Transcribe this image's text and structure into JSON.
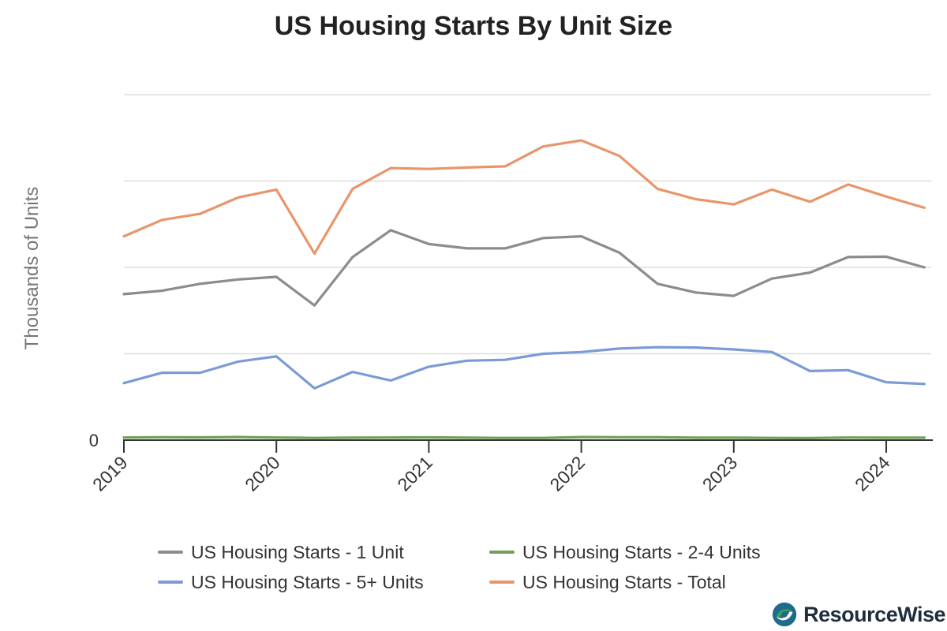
{
  "chart_data": {
    "type": "line",
    "title": "US Housing Starts By Unit Size",
    "ylabel": "Thousands of Units",
    "xlabel": "",
    "ylim": [
      0,
      2000
    ],
    "y_tick_labels": [
      {
        "value": 0,
        "label": "0"
      }
    ],
    "grid": true,
    "x_tick_labels": [
      "2019",
      "2020",
      "2021",
      "2022",
      "2023",
      "2024"
    ],
    "x": [
      "2019-Q1",
      "2019-Q2",
      "2019-Q3",
      "2019-Q4",
      "2020-Q1",
      "2020-Q2",
      "2020-Q3",
      "2020-Q4",
      "2021-Q1",
      "2021-Q2",
      "2021-Q3",
      "2021-Q4",
      "2022-Q1",
      "2022-Q2",
      "2022-Q3",
      "2022-Q4",
      "2023-Q1",
      "2023-Q2",
      "2023-Q3",
      "2023-Q4",
      "2024-Q1",
      "2024-Q2"
    ],
    "legend_position": "bottom",
    "series": [
      {
        "name": "US Housing Starts - 1 Unit",
        "color": "#8c8c8c",
        "values": [
          845,
          865,
          905,
          930,
          945,
          780,
          1060,
          1215,
          1135,
          1110,
          1110,
          1170,
          1180,
          1085,
          905,
          855,
          835,
          935,
          970,
          1060,
          1062,
          1000
        ]
      },
      {
        "name": "US Housing Starts - 2-4 Units",
        "color": "#70a05a",
        "values": [
          15,
          17,
          16,
          18,
          15,
          13,
          14,
          15,
          16,
          14,
          13,
          13,
          18,
          17,
          17,
          14,
          14,
          13,
          12,
          15,
          14,
          14
        ]
      },
      {
        "name": "US Housing Starts - 5+ Units",
        "color": "#7b9ad6",
        "values": [
          330,
          390,
          390,
          455,
          485,
          300,
          395,
          345,
          425,
          460,
          465,
          500,
          510,
          530,
          538,
          536,
          525,
          510,
          400,
          405,
          335,
          325
        ]
      },
      {
        "name": "US Housing Starts - Total",
        "color": "#e8956a",
        "values": [
          1180,
          1275,
          1310,
          1405,
          1450,
          1080,
          1455,
          1575,
          1570,
          1578,
          1585,
          1700,
          1735,
          1645,
          1455,
          1395,
          1365,
          1450,
          1380,
          1480,
          1410,
          1345
        ]
      }
    ]
  },
  "legend": {
    "item1": "US Housing Starts - 1 Unit",
    "item2": "US Housing Starts - 2-4 Units",
    "item3": "US Housing Starts - 5+ Units",
    "item4": "US Housing Starts - Total"
  },
  "logo": {
    "text": "ResourceWise",
    "colors": {
      "primary": "#1f6b8c",
      "secondary": "#3aa35a"
    }
  }
}
